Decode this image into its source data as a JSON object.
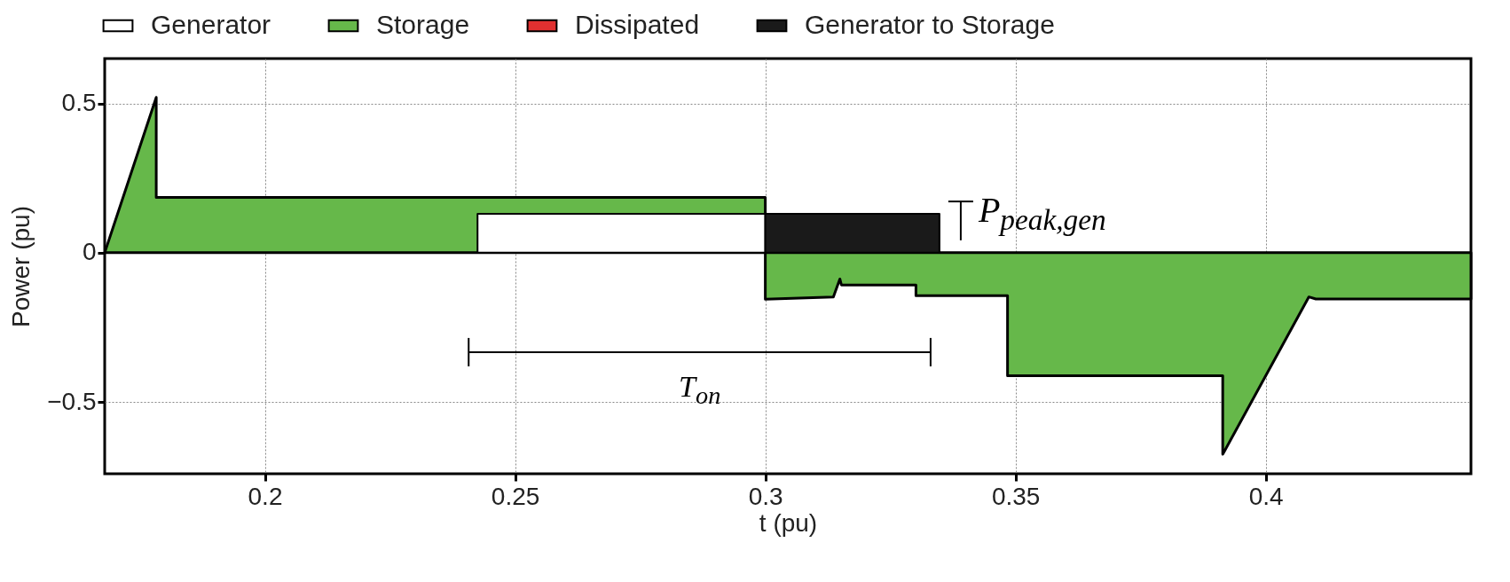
{
  "chart_data": {
    "type": "area",
    "xlabel": "t (pu)",
    "ylabel": "Power (pu)",
    "xlim": [
      0.168,
      0.441
    ],
    "ylim": [
      -0.74,
      0.65
    ],
    "xticks": [
      0.2,
      0.25,
      0.3,
      0.35,
      0.4
    ],
    "yticks": [
      -0.5,
      0,
      0.5
    ],
    "grid": true,
    "legend": "top",
    "series": [
      {
        "name": "Generator",
        "color": "#ffffff",
        "x": [
          0.2425,
          0.2425,
          0.3,
          0.3
        ],
        "values": [
          0,
          0.13,
          0.13,
          0
        ]
      },
      {
        "name": "Storage",
        "color": "#66b84a",
        "x": [
          0.168,
          0.1783,
          0.1783,
          0.3,
          0.3,
          0.3136,
          0.3149,
          0.3152,
          0.3301,
          0.3301,
          0.3484,
          0.3484,
          0.3914,
          0.3914,
          0.4086,
          0.41,
          0.441
        ],
        "values": [
          0,
          0.52,
          0.185,
          0.185,
          -0.156,
          -0.148,
          -0.088,
          -0.108,
          -0.108,
          -0.144,
          -0.144,
          -0.412,
          -0.412,
          -0.675,
          -0.148,
          -0.155,
          -0.155
        ]
      },
      {
        "name": "Dissipated",
        "color": "#e03030"
      },
      {
        "name": "Generator to Storage",
        "color": "#1a1a1a",
        "x": [
          0.3,
          0.3,
          0.3348,
          0.3348
        ],
        "values": [
          0,
          0.13,
          0.13,
          0
        ]
      }
    ],
    "annotations": [
      "T$_{on}$",
      "P$_{peak,gen}$"
    ]
  }
}
